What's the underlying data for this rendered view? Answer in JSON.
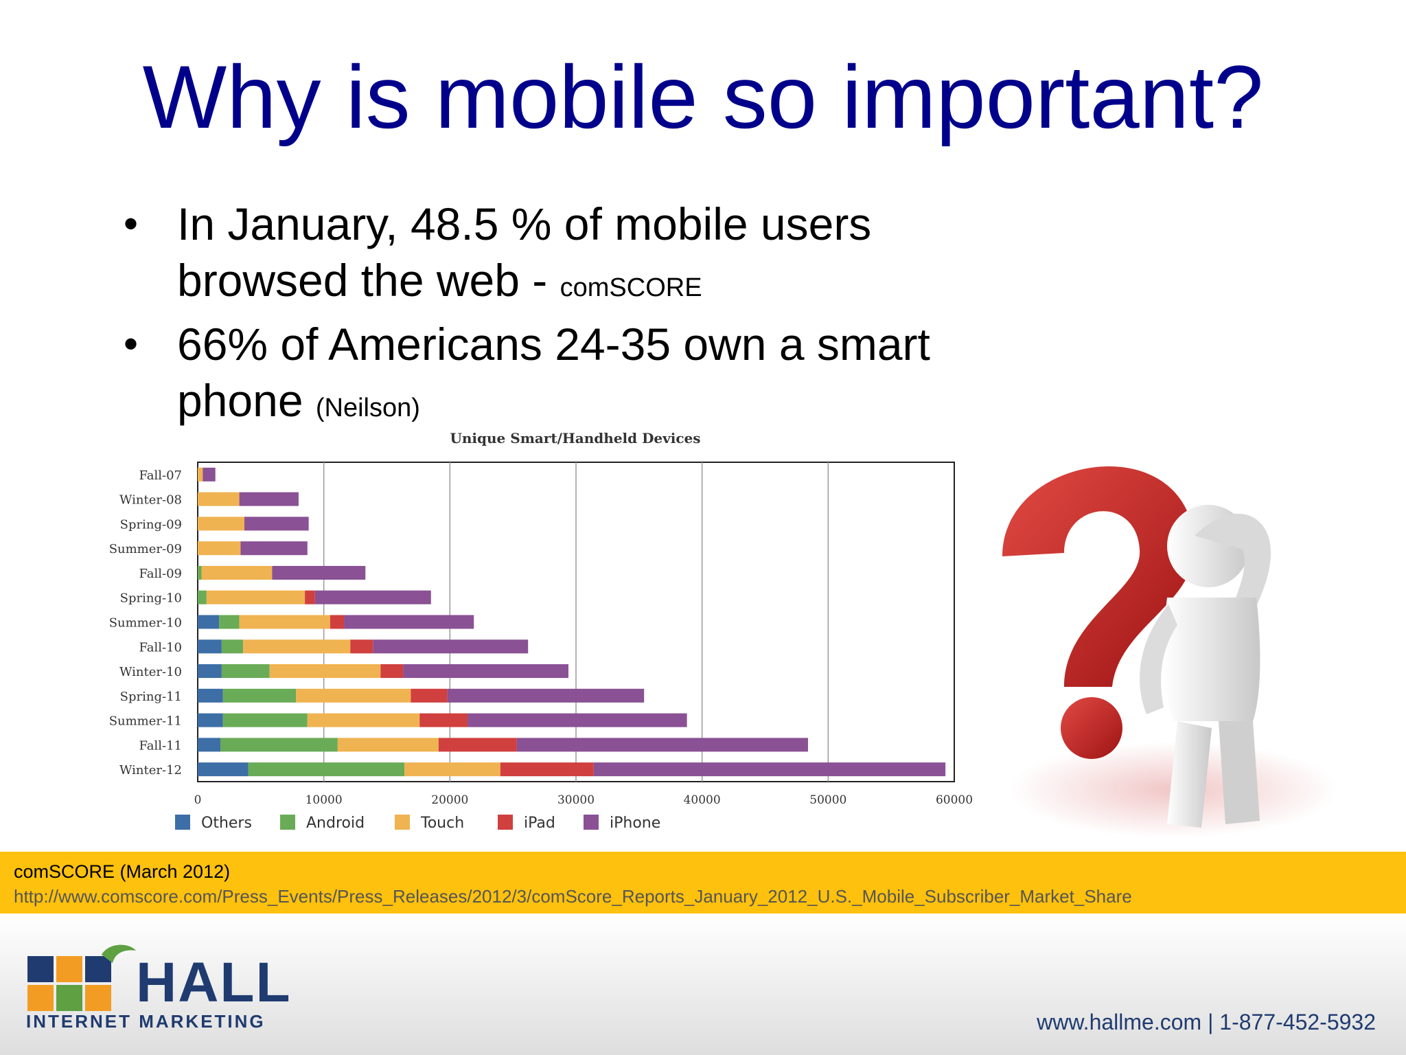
{
  "slide": {
    "title": "Why is mobile so important?",
    "bullets": [
      {
        "main": " In January, 48.5 % of mobile users browsed the web - ",
        "source": "comSCORE"
      },
      {
        "main": " 66% of Americans 24-35 own a smart phone ",
        "source": "(Neilson)"
      }
    ]
  },
  "chart_data": {
    "type": "bar",
    "orientation": "horizontal",
    "stacked": true,
    "title": "Unique Smart/Handheld Devices",
    "categories": [
      "Fall-07",
      "Winter-08",
      "Spring-09",
      "Summer-09",
      "Fall-09",
      "Spring-10",
      "Summer-10",
      "Fall-10",
      "Winter-10",
      "Spring-11",
      "Summer-11",
      "Fall-11",
      "Winter-12"
    ],
    "series": [
      {
        "name": "Others",
        "color": "#3d6ea6",
        "values": [
          0,
          0,
          0,
          0,
          0,
          0,
          1700,
          1900,
          1900,
          2000,
          2000,
          1800,
          4000
        ]
      },
      {
        "name": "Android",
        "color": "#6aab57",
        "values": [
          0,
          0,
          0,
          0,
          300,
          700,
          1600,
          1700,
          3800,
          5800,
          6700,
          9300,
          12400
        ]
      },
      {
        "name": "Touch",
        "color": "#f0b351",
        "values": [
          400,
          3300,
          3700,
          3400,
          5600,
          7800,
          7200,
          8500,
          8800,
          9100,
          8900,
          8000,
          7600
        ]
      },
      {
        "name": "iPad",
        "color": "#d0403e",
        "values": [
          0,
          0,
          0,
          0,
          0,
          800,
          1100,
          1800,
          1800,
          2900,
          3800,
          6200,
          7400
        ]
      },
      {
        "name": "iPhone",
        "color": "#8a5195",
        "values": [
          1000,
          4700,
          5100,
          5300,
          7400,
          9200,
          10300,
          12300,
          13100,
          15600,
          17400,
          23100,
          27900
        ]
      }
    ],
    "xlim": [
      0,
      60000
    ],
    "xticks": [
      0,
      10000,
      20000,
      30000,
      40000,
      50000,
      60000
    ],
    "grid": true,
    "legend_position": "bottom"
  },
  "banner": {
    "source": "comSCORE (March 2012)",
    "url": "http://www.comscore.com/Press_Events/Press_Releases/2012/3/comScore_Reports_January_2012_U.S._Mobile_Subscriber_Market_Share"
  },
  "footer": {
    "logo_name": "HALL",
    "logo_sub": "INTERNET MARKETING",
    "contact": "www.hallme.com | 1-877-452-5932"
  }
}
